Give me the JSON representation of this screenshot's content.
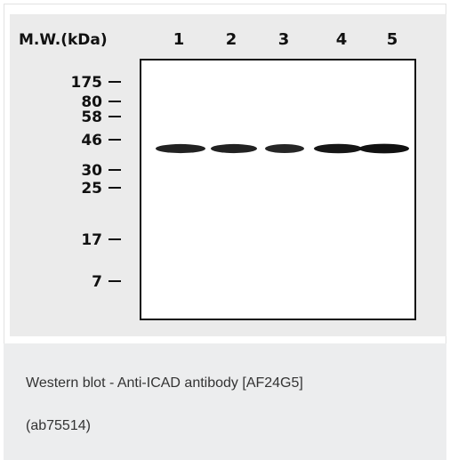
{
  "figure": {
    "mw_header": "M.W.(kDa)",
    "lanes": [
      "1",
      "2",
      "3",
      "4",
      "5"
    ],
    "markers": [
      "175",
      "80",
      "58",
      "46",
      "30",
      "25",
      "17",
      "7"
    ],
    "band_intensity": [
      0.85,
      0.85,
      0.8,
      0.95,
      1.0
    ],
    "colors": {
      "panel_background": "#ebebeb",
      "membrane": "#ffffff",
      "band": "#111111"
    }
  },
  "caption": {
    "line1": "Western blot - Anti-ICAD antibody [AF24G5]",
    "line2": "(ab75514)"
  }
}
